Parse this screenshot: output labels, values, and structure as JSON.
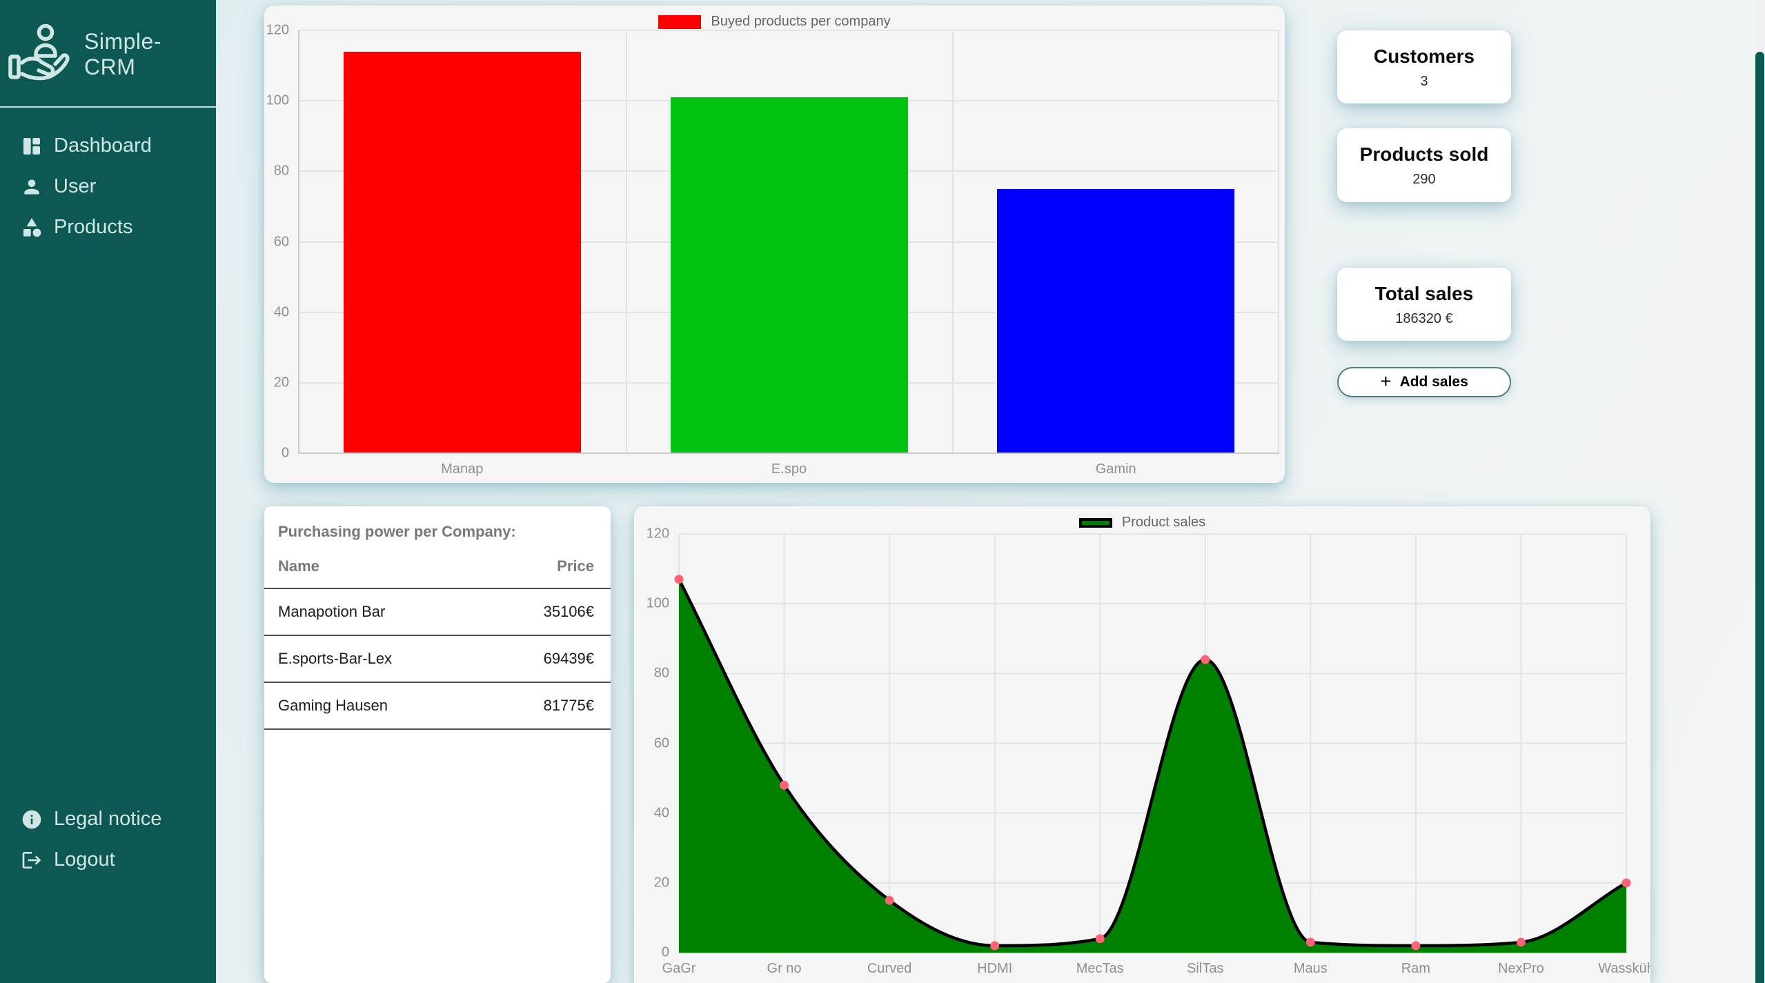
{
  "app": {
    "logo_text": "Simple-CRM"
  },
  "sidebar": {
    "nav_top": [
      {
        "icon": "dashboard-icon",
        "label": "Dashboard"
      },
      {
        "icon": "user-icon",
        "label": "User"
      },
      {
        "icon": "products-icon",
        "label": "Products"
      }
    ],
    "nav_bottom": [
      {
        "icon": "info-icon",
        "label": "Legal notice"
      },
      {
        "icon": "logout-icon",
        "label": "Logout"
      }
    ]
  },
  "stat_cards": [
    {
      "title": "Customers",
      "value": "3"
    },
    {
      "title": "Products sold",
      "value": "290"
    },
    {
      "title": "Total sales",
      "value": "186320 €"
    }
  ],
  "add_sales": {
    "plus": "+",
    "label": "Add sales"
  },
  "table": {
    "title": "Purchasing power per Company:",
    "columns": [
      "Name",
      "Price"
    ],
    "rows": [
      {
        "name": "Manapotion Bar",
        "price": "35106€"
      },
      {
        "name": "E.sports-Bar-Lex",
        "price": "69439€"
      },
      {
        "name": "Gaming Hausen",
        "price": "81775€"
      }
    ]
  },
  "colors": {
    "sidebar_bg": "#0e5854",
    "sidebar_text": "#cfe7e4",
    "accent_border": "#4a807d",
    "bar_red": "#ff0000",
    "bar_green": "#00c30f",
    "bar_blue": "#0000ff",
    "area_green": "#008000",
    "line_black": "#000000",
    "point_pink": "#ff6377"
  },
  "chart_data": [
    {
      "id": "bar-chart",
      "type": "bar",
      "legend": "Buyed products per company",
      "legend_swatch_color": "#ff0000",
      "categories": [
        "Manap",
        "E.spo",
        "Gamin"
      ],
      "values": [
        114,
        101,
        75
      ],
      "bar_colors": [
        "#ff0000",
        "#00c30f",
        "#0000ff"
      ],
      "ylim": [
        0,
        120
      ],
      "yticks": [
        0,
        20,
        40,
        60,
        80,
        100,
        120
      ],
      "grid": true,
      "legend_position": "top"
    },
    {
      "id": "line-chart",
      "type": "area",
      "legend": "Product sales",
      "legend_swatch_color": "#008000",
      "categories": [
        "GaGr",
        "Gr no",
        "Curved",
        "HDMI",
        "MecTas",
        "SilTas",
        "Maus",
        "Ram",
        "NexPro",
        "Wassküh"
      ],
      "values": [
        107,
        48,
        15,
        2,
        4,
        84,
        3,
        2,
        3,
        20
      ],
      "fill_color": "#008000",
      "line_color": "#000000",
      "point_color": "#ff6377",
      "ylim": [
        0,
        120
      ],
      "yticks": [
        0,
        20,
        40,
        60,
        80,
        100,
        120
      ],
      "grid": true,
      "legend_position": "top"
    }
  ]
}
